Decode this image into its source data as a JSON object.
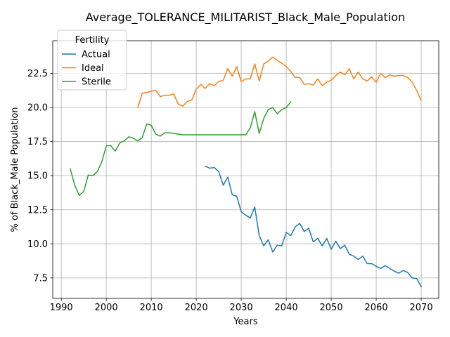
{
  "chart_data": {
    "type": "line",
    "title": "Average_TOLERANCE_MILITARIST_Black_Male_Population",
    "xlabel": "Years",
    "ylabel": "% of Black_Male Population",
    "xlim": [
      1988.1,
      2073.9
    ],
    "ylim": [
      6.0,
      24.9
    ],
    "grid": true,
    "xticks": [
      1990,
      2000,
      2010,
      2020,
      2030,
      2040,
      2050,
      2060,
      2070
    ],
    "yticks": [
      7.5,
      10.0,
      12.5,
      15.0,
      17.5,
      20.0,
      22.5
    ],
    "ytick_labels": [
      "7.5",
      "10.0",
      "12.5",
      "15.0",
      "17.5",
      "20.0",
      "22.5"
    ],
    "legend": {
      "title": "Fertility",
      "location": "top-left"
    },
    "series": [
      {
        "name": "Actual",
        "color": "#1f77b4",
        "x": [
          2022,
          2023,
          2024,
          2025,
          2026,
          2027,
          2028,
          2029,
          2030,
          2031,
          2032,
          2033,
          2034,
          2035,
          2036,
          2037,
          2038,
          2039,
          2040,
          2041,
          2042,
          2043,
          2044,
          2045,
          2046,
          2047,
          2048,
          2049,
          2050,
          2051,
          2052,
          2053,
          2054,
          2055,
          2056,
          2057,
          2058,
          2059,
          2060,
          2061,
          2062,
          2063,
          2064,
          2065,
          2066,
          2067,
          2068,
          2069,
          2070
        ],
        "y": [
          15.7,
          15.55,
          15.6,
          15.3,
          14.3,
          14.9,
          13.6,
          13.5,
          12.35,
          12.1,
          11.9,
          12.7,
          10.6,
          9.85,
          10.3,
          9.4,
          9.9,
          9.85,
          10.85,
          10.6,
          11.25,
          11.5,
          10.9,
          11.15,
          10.15,
          10.4,
          9.85,
          10.4,
          9.6,
          10.2,
          9.65,
          9.9,
          9.25,
          9.1,
          8.85,
          9.1,
          8.55,
          8.55,
          8.35,
          8.2,
          8.4,
          8.2,
          8.0,
          7.85,
          8.05,
          7.9,
          7.5,
          7.45,
          6.85
        ]
      },
      {
        "name": "Ideal",
        "color": "#ff7f0e",
        "x": [
          2007,
          2008,
          2009,
          2010,
          2011,
          2012,
          2013,
          2014,
          2015,
          2016,
          2017,
          2018,
          2019,
          2020,
          2021,
          2022,
          2023,
          2024,
          2025,
          2026,
          2027,
          2028,
          2029,
          2030,
          2031,
          2032,
          2033,
          2034,
          2035,
          2036,
          2037,
          2038,
          2039,
          2040,
          2041,
          2042,
          2043,
          2044,
          2045,
          2046,
          2047,
          2048,
          2049,
          2050,
          2051,
          2052,
          2053,
          2054,
          2055,
          2056,
          2057,
          2058,
          2059,
          2060,
          2061,
          2062,
          2063,
          2064,
          2065,
          2066,
          2067,
          2068,
          2069,
          2070
        ],
        "y": [
          20.0,
          21.05,
          21.1,
          21.2,
          21.25,
          20.8,
          20.9,
          20.9,
          21.0,
          20.25,
          20.1,
          20.45,
          20.55,
          21.35,
          21.7,
          21.4,
          21.75,
          21.6,
          21.9,
          22.0,
          22.85,
          22.3,
          23.0,
          21.9,
          22.1,
          22.1,
          23.2,
          21.95,
          23.2,
          23.4,
          23.7,
          23.45,
          23.25,
          23.0,
          22.65,
          22.2,
          22.2,
          21.7,
          21.75,
          21.65,
          22.1,
          21.6,
          21.85,
          22.0,
          22.35,
          22.6,
          22.4,
          22.85,
          22.1,
          22.6,
          22.1,
          21.95,
          22.25,
          21.85,
          22.5,
          22.2,
          22.4,
          22.3,
          22.35,
          22.35,
          22.2,
          21.85,
          21.25,
          20.5
        ]
      },
      {
        "name": "Sterile",
        "color": "#2ca02c",
        "x": [
          1992,
          1993,
          1994,
          1995,
          1996,
          1997,
          1998,
          1999,
          2000,
          2001,
          2002,
          2003,
          2004,
          2005,
          2006,
          2007,
          2008,
          2009,
          2010,
          2011,
          2012,
          2013,
          2014,
          2015,
          2016,
          2017,
          2018,
          2019,
          2020,
          2021,
          2022,
          2023,
          2024,
          2025,
          2026,
          2027,
          2028,
          2029,
          2030,
          2031,
          2032,
          2033,
          2034,
          2035,
          2036,
          2037,
          2038,
          2039,
          2040,
          2041
        ],
        "y": [
          15.5,
          14.3,
          13.55,
          13.85,
          15.05,
          15.0,
          15.3,
          16.0,
          17.2,
          17.2,
          16.8,
          17.4,
          17.55,
          17.85,
          17.75,
          17.55,
          17.8,
          18.8,
          18.7,
          18.05,
          17.9,
          18.15,
          18.15,
          18.1,
          18.05,
          18.0,
          18.0,
          18.0,
          18.0,
          18.0,
          18.0,
          18.0,
          18.0,
          18.0,
          18.0,
          18.0,
          18.0,
          18.0,
          18.0,
          18.0,
          18.5,
          19.7,
          18.1,
          19.2,
          19.85,
          20.0,
          19.55,
          19.85,
          20.0,
          20.4
        ]
      }
    ]
  }
}
